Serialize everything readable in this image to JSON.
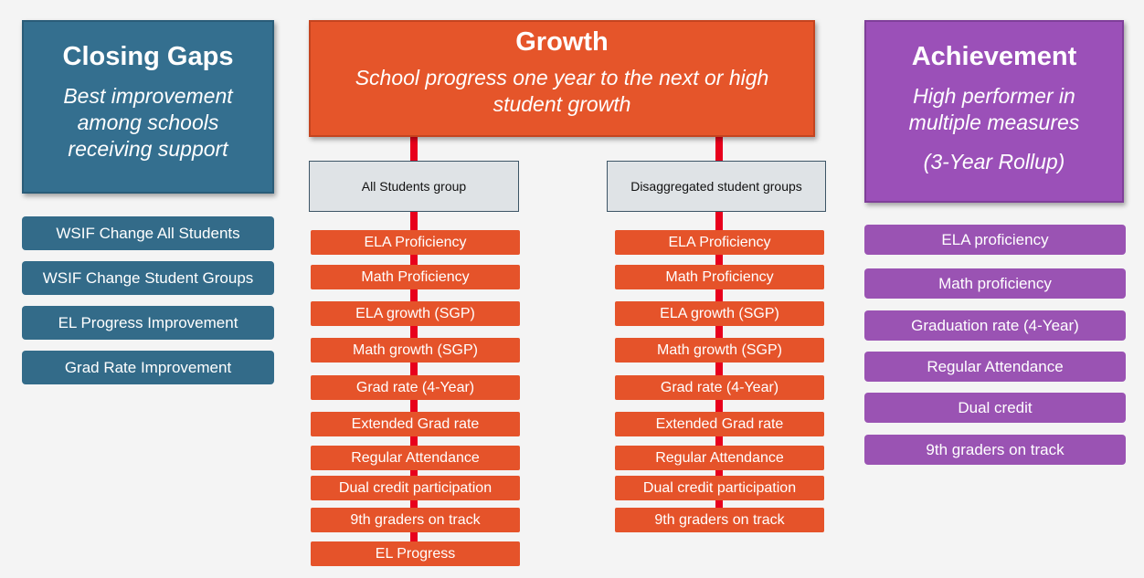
{
  "closing_gaps": {
    "title": "Closing Gaps",
    "subtitle": "Best improvement among schools receiving support",
    "items": [
      "WSIF Change All Students",
      "WSIF Change Student Groups",
      "EL Progress Improvement",
      "Grad Rate Improvement"
    ]
  },
  "growth": {
    "title": "Growth",
    "subtitle": "School progress one year to the next or high student growth",
    "groups": [
      {
        "label": "All Students group",
        "items": [
          "ELA Proficiency",
          "Math Proficiency",
          "ELA growth (SGP)",
          "Math growth (SGP)",
          "Grad rate (4-Year)",
          "Extended Grad rate",
          "Regular Attendance",
          "Dual credit participation",
          "9th graders on track",
          "EL Progress"
        ]
      },
      {
        "label": "Disaggregated student groups",
        "items": [
          "ELA Proficiency",
          "Math Proficiency",
          "ELA growth (SGP)",
          "Math growth (SGP)",
          "Grad rate (4-Year)",
          "Extended Grad rate",
          "Regular Attendance",
          "Dual credit participation",
          "9th graders on track"
        ]
      }
    ]
  },
  "achievement": {
    "title": "Achievement",
    "subtitle": "High performer in multiple measures",
    "note": "(3-Year Rollup)",
    "items": [
      "ELA proficiency",
      "Math proficiency",
      "Graduation rate (4-Year)",
      "Regular Attendance",
      "Dual credit",
      "9th graders on track"
    ]
  }
}
